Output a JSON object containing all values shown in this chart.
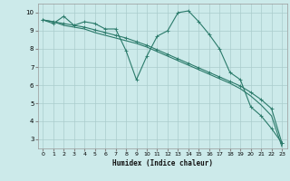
{
  "background_color": "#cceaea",
  "grid_color": "#aacccc",
  "line_color": "#2a7a6a",
  "xlabel": "Humidex (Indice chaleur)",
  "xlim": [
    -0.5,
    23.5
  ],
  "ylim": [
    2.5,
    10.5
  ],
  "yticks": [
    3,
    4,
    5,
    6,
    7,
    8,
    9,
    10
  ],
  "xticks": [
    0,
    1,
    2,
    3,
    4,
    5,
    6,
    7,
    8,
    9,
    10,
    11,
    12,
    13,
    14,
    15,
    16,
    17,
    18,
    19,
    20,
    21,
    22,
    23
  ],
  "series1_x": [
    0,
    1,
    2,
    3,
    4,
    5,
    6,
    7,
    8,
    9,
    10,
    11,
    12,
    13,
    14,
    15,
    16,
    17,
    18,
    19,
    20,
    21,
    22,
    23
  ],
  "series1_y": [
    9.6,
    9.4,
    9.8,
    9.3,
    9.5,
    9.4,
    9.1,
    9.1,
    7.9,
    6.3,
    7.6,
    8.7,
    9.0,
    10.0,
    10.1,
    9.5,
    8.8,
    8.0,
    6.7,
    6.3,
    4.8,
    4.3,
    3.6,
    2.8
  ],
  "series2_x": [
    0,
    1,
    2,
    3,
    4,
    5,
    6,
    7,
    8,
    9,
    10,
    11,
    12,
    13,
    14,
    15,
    16,
    17,
    18,
    19,
    20,
    21,
    22,
    23
  ],
  "series2_y": [
    9.6,
    9.5,
    9.4,
    9.3,
    9.2,
    9.05,
    8.9,
    8.75,
    8.6,
    8.4,
    8.2,
    7.95,
    7.7,
    7.45,
    7.2,
    6.95,
    6.7,
    6.45,
    6.2,
    5.95,
    5.6,
    5.2,
    4.7,
    2.8
  ],
  "series3_x": [
    0,
    1,
    2,
    3,
    4,
    5,
    6,
    7,
    8,
    9,
    10,
    11,
    12,
    13,
    14,
    15,
    16,
    17,
    18,
    19,
    20,
    21,
    22,
    23
  ],
  "series3_y": [
    9.6,
    9.5,
    9.3,
    9.2,
    9.1,
    8.9,
    8.75,
    8.6,
    8.45,
    8.3,
    8.1,
    7.85,
    7.6,
    7.35,
    7.1,
    6.85,
    6.6,
    6.35,
    6.1,
    5.8,
    5.4,
    4.9,
    4.3,
    2.6
  ]
}
